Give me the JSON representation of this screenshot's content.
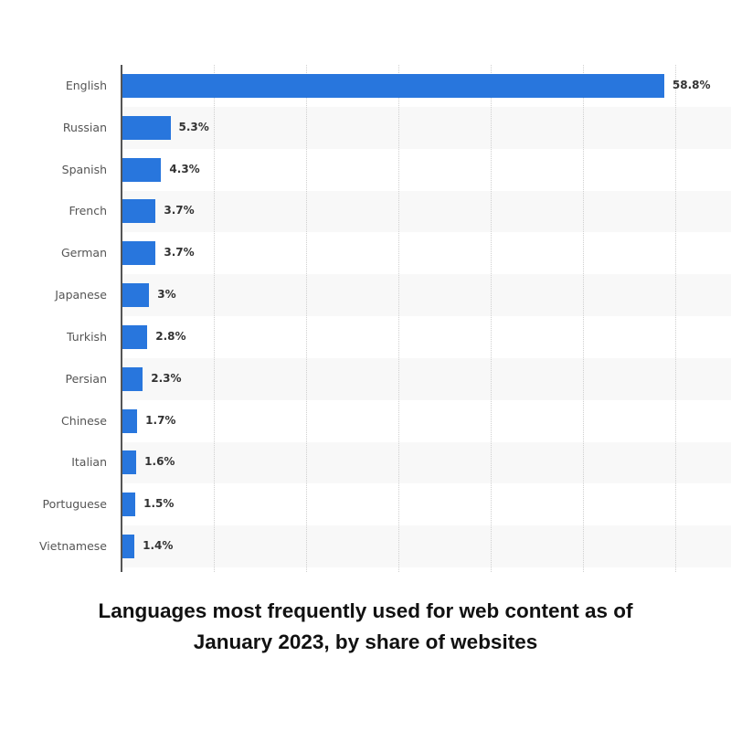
{
  "chart_data": {
    "type": "bar",
    "orientation": "horizontal",
    "title": "Languages most frequently used for web content as of January 2023, by share of websites",
    "title_lines": [
      "Languages most frequently used for web content as of",
      "January 2023, by share of websites"
    ],
    "categories": [
      "English",
      "Russian",
      "Spanish",
      "French",
      "German",
      "Japanese",
      "Turkish",
      "Persian",
      "Chinese",
      "Italian",
      "Portuguese",
      "Vietnamese"
    ],
    "values": [
      58.8,
      5.3,
      4.3,
      3.7,
      3.7,
      3,
      2.8,
      2.3,
      1.7,
      1.6,
      1.5,
      1.4
    ],
    "value_labels": [
      "58.8%",
      "5.3%",
      "4.3%",
      "3.7%",
      "3.7%",
      "3%",
      "2.8%",
      "2.3%",
      "1.7%",
      "1.6%",
      "1.5%",
      "1.4%"
    ],
    "xlabel": "",
    "ylabel": "",
    "xlim": [
      0,
      65
    ],
    "grid_x_at": [
      10,
      20,
      30,
      40,
      50,
      60
    ],
    "grid": true,
    "legend": "none",
    "bar_color": "#2876dd"
  }
}
